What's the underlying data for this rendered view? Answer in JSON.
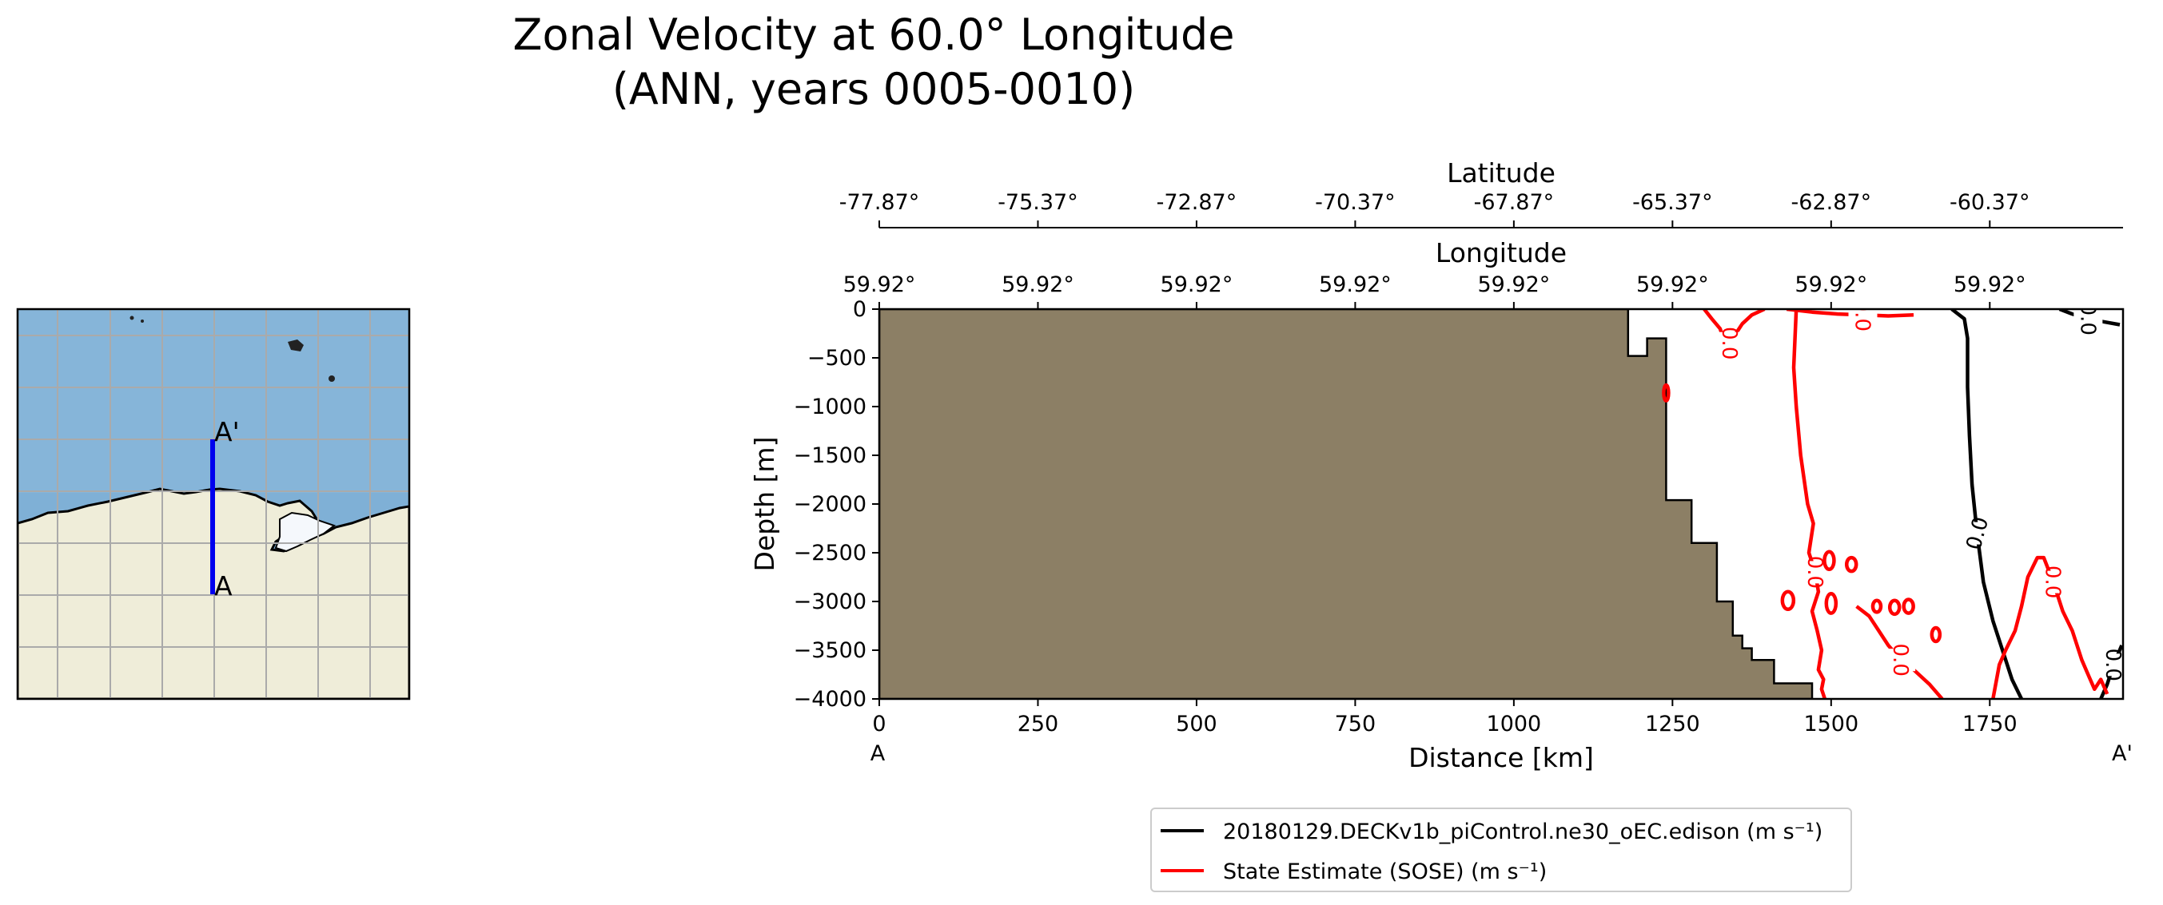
{
  "title": {
    "line1": "Zonal Velocity at 60.0° Longitude",
    "line2": "(ANN, years 0005-0010)"
  },
  "map_inset": {
    "label_start": "A",
    "label_end": "A'",
    "colors": {
      "ocean": "#7fb0d6",
      "land": "#efedd9",
      "transect": "#0000ee",
      "grid": "#aaaaaa"
    }
  },
  "chart_data": {
    "type": "line",
    "xlabel": "Distance [km]",
    "ylabel": "Depth [m]",
    "xlim": [
      0,
      1960
    ],
    "ylim": [
      -4000,
      0
    ],
    "x_ticks": [
      0,
      250,
      500,
      750,
      1000,
      1250,
      1500,
      1750
    ],
    "x_tick_labels": [
      "0",
      "250",
      "500",
      "750",
      "1000",
      "1250",
      "1500",
      "1750"
    ],
    "y_ticks": [
      0,
      -500,
      -1000,
      -1500,
      -2000,
      -2500,
      -3000,
      -3500,
      -4000
    ],
    "y_tick_labels": [
      "0",
      "−500",
      "−1000",
      "−1500",
      "−2000",
      "−2500",
      "−3000",
      "−3500",
      "−4000"
    ],
    "start_label": "A",
    "end_label": "A'",
    "top_axes": [
      {
        "label": "Latitude",
        "tick_labels": [
          "-77.87°",
          "-75.37°",
          "-72.87°",
          "-70.37°",
          "-67.87°",
          "-65.37°",
          "-62.87°",
          "-60.37°"
        ]
      },
      {
        "label": "Longitude",
        "tick_labels": [
          "59.92°",
          "59.92°",
          "59.92°",
          "59.92°",
          "59.92°",
          "59.92°",
          "59.92°",
          "59.92°"
        ]
      }
    ],
    "bathymetry": {
      "color": "#8c7f65",
      "x": [
        0,
        1180,
        1180,
        1210,
        1210,
        1240,
        1240,
        1240,
        1280,
        1280,
        1320,
        1320,
        1345,
        1345,
        1360,
        1360,
        1375,
        1375,
        1410,
        1410,
        1470,
        1470,
        0
      ],
      "depth": [
        0,
        0,
        -480,
        -480,
        -300,
        -300,
        -1960,
        -1960,
        -1960,
        -2400,
        -2400,
        -3000,
        -3000,
        -3350,
        -3350,
        -3480,
        -3480,
        -3600,
        -3600,
        -3840,
        -3840,
        -4000,
        -4000
      ]
    },
    "series": [
      {
        "name": "20180129.DECKv1b_piControl.ne30_oEC.edison (m s⁻¹)",
        "color": "#000000",
        "contours": [
          {
            "level_label": "0.0",
            "x": [
              1690,
              1710,
              1715,
              1715,
              1718,
              1722,
              1730,
              1740,
              1755,
              1770,
              1785,
              1800
            ],
            "depth": [
              0,
              -100,
              -300,
              -800,
              -1300,
              -1800,
              -2300,
              -2800,
              -3200,
              -3500,
              -3800,
              -4000
            ]
          },
          {
            "level_label": "0.0",
            "x": [
              1860,
              1880,
              1905,
              1930,
              1955
            ],
            "depth": [
              0,
              -50,
              -100,
              -130,
              -160
            ]
          },
          {
            "level_label": "0.0",
            "x": [
              1925,
              1935,
              1945,
              1958
            ],
            "depth": [
              -4000,
              -3850,
              -3650,
              -3450
            ]
          }
        ]
      },
      {
        "name": "State Estimate (SOSE) (m s⁻¹)",
        "color": "#ff0000",
        "contours": [
          {
            "level_label": "0.0",
            "x": [
              1300,
              1312,
              1325,
              1330,
              1340,
              1350,
              1360,
              1375,
              1395
            ],
            "depth": [
              0,
              -100,
              -200,
              -300,
              -350,
              -250,
              -150,
              -60,
              0
            ]
          },
          {
            "level_label": "0.0",
            "x": [
              1445,
              1443,
              1441,
              1445,
              1452,
              1463,
              1472,
              1465,
              1475,
              1480,
              1470,
              1478,
              1485,
              1480,
              1488,
              1485,
              1490
            ],
            "depth": [
              0,
              -300,
              -600,
              -1000,
              -1500,
              -2000,
              -2200,
              -2500,
              -2700,
              -2900,
              -3100,
              -3300,
              -3500,
              -3700,
              -3800,
              -3900,
              -4000
            ]
          },
          {
            "level_label": "0.0",
            "x": [
              1430,
              1470,
              1510,
              1550,
              1590,
              1630
            ],
            "depth": [
              0,
              -30,
              -50,
              -60,
              -70,
              -60
            ]
          },
          {
            "level_label": "0.0",
            "x": [
              1540,
              1560,
              1575,
              1590,
              1610,
              1630,
              1655,
              1675
            ],
            "depth": [
              -3050,
              -3150,
              -3300,
              -3450,
              -3600,
              -3700,
              -3850,
              -4000
            ]
          },
          {
            "level_label": "0.0",
            "x": [
              1755,
              1765,
              1775,
              1790,
              1800,
              1810,
              1825,
              1835,
              1850,
              1865,
              1880,
              1895,
              1905,
              1915,
              1925,
              1935
            ],
            "depth": [
              -4000,
              -3650,
              -3500,
              -3300,
              -3050,
              -2750,
              -2550,
              -2550,
              -2800,
              -3100,
              -3300,
              -3600,
              -3750,
              -3900,
              -3800,
              -3950
            ]
          }
        ],
        "blobs": [
          {
            "x": 1432,
            "depth": -2990,
            "rx": 7,
            "ry": 90
          },
          {
            "x": 1497,
            "depth": -2580,
            "rx": 6,
            "ry": 90
          },
          {
            "x": 1500,
            "depth": -3020,
            "rx": 6,
            "ry": 100
          },
          {
            "x": 1532,
            "depth": -2620,
            "rx": 6,
            "ry": 70
          },
          {
            "x": 1572,
            "depth": -3050,
            "rx": 5,
            "ry": 60
          },
          {
            "x": 1600,
            "depth": -3060,
            "rx": 6,
            "ry": 70
          },
          {
            "x": 1622,
            "depth": -3050,
            "rx": 6,
            "ry": 70
          },
          {
            "x": 1665,
            "depth": -3340,
            "rx": 5,
            "ry": 70
          },
          {
            "x": 1240,
            "depth": -860,
            "rx": 3,
            "ry": 80
          }
        ]
      }
    ],
    "legend": {
      "position": "bottom-center"
    }
  }
}
